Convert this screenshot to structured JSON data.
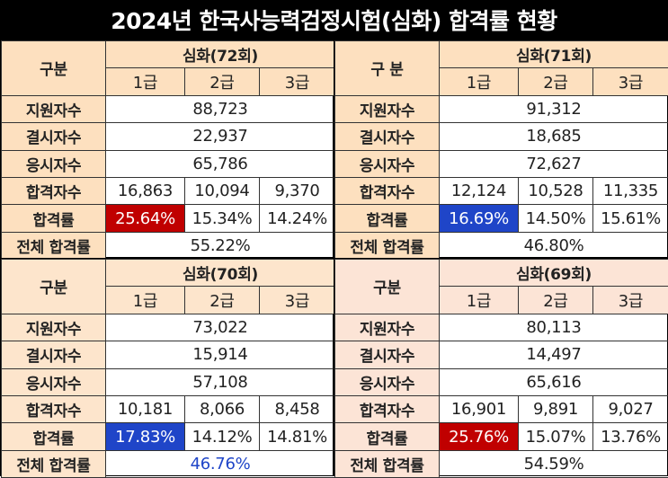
{
  "title": "2024년 한국사능력검정시험(심화) 합격률 현황",
  "labels": {
    "category": "구분",
    "category_alt": "구 분",
    "applicants": "지원자수",
    "absentees": "결시자수",
    "examinees": "응시자수",
    "passers": "합격자수",
    "pass_rate": "합격률",
    "total_pass_rate": "전체 합격률"
  },
  "quadrants": [
    {
      "session": "심화(72회)",
      "grades": [
        "1급",
        "2급",
        "3급"
      ],
      "applicants": "88,723",
      "absentees": "22,937",
      "examinees": "65,786",
      "passers": [
        "16,863",
        "10,094",
        "9,370"
      ],
      "pass_rates": [
        "25.64%",
        "15.34%",
        "14.24%"
      ],
      "total_pass_rate": "55.22%"
    },
    {
      "session": "심화(71회)",
      "grades": [
        "1급",
        "2급",
        "3급"
      ],
      "applicants": "91,312",
      "absentees": "18,685",
      "examinees": "72,627",
      "passers": [
        "12,124",
        "10,528",
        "11,335"
      ],
      "pass_rates": [
        "16.69%",
        "14.50%",
        "15.61%"
      ],
      "total_pass_rate": "46.80%"
    },
    {
      "session": "심화(70회)",
      "grades": [
        "1급",
        "2급",
        "3급"
      ],
      "applicants": "73,022",
      "absentees": "15,914",
      "examinees": "57,108",
      "passers": [
        "10,181",
        "8,066",
        "8,458"
      ],
      "pass_rates": [
        "17.83%",
        "14.12%",
        "14.81%"
      ],
      "total_pass_rate": "46.76%"
    },
    {
      "session": "심화(69회)",
      "grades": [
        "1급",
        "2급",
        "3급"
      ],
      "applicants": "80,113",
      "absentees": "14,497",
      "examinees": "65,616",
      "passers": [
        "16,901",
        "9,891",
        "9,027"
      ],
      "pass_rates": [
        "25.76%",
        "15.07%",
        "13.76%"
      ],
      "total_pass_rate": "54.59%"
    }
  ],
  "colors": {
    "header_top": "#fde0bf",
    "header_bottom_left": "#fde5cc",
    "header_bottom_right": "#fce4d6",
    "highlight_red": "#c00000",
    "highlight_blue": "#1f45c8"
  }
}
